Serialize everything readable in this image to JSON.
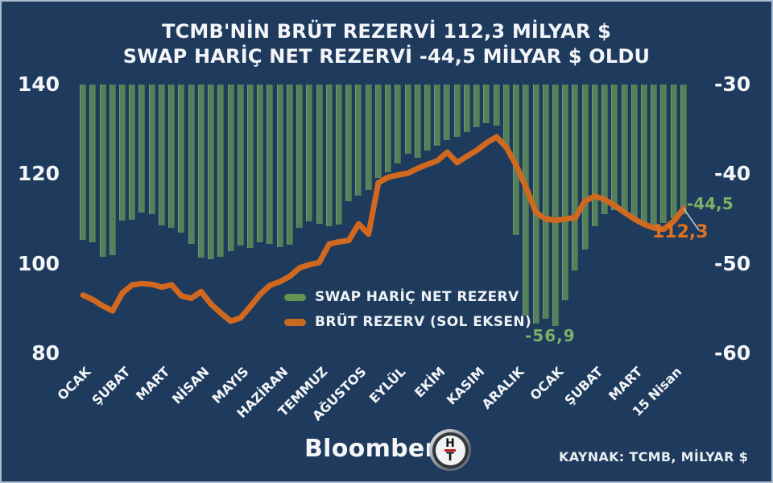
{
  "title": {
    "line1": "TCMB'NİN BRÜT REZERVİ 112,3 MİLYAR $",
    "line2": "SWAP HARİÇ NET REZERVİ -44,5 MİLYAR $ OLDU"
  },
  "legend": {
    "net": {
      "label": "SWAP HARİÇ NET REZERV",
      "color": "#649354"
    },
    "gross": {
      "label": "BRÜT REZERV (SOL EKSEN)",
      "color": "#ca6a20"
    }
  },
  "annotations": {
    "net_last": "-44,5",
    "gross_last": "112,3",
    "net_min": "-56,9"
  },
  "footer": {
    "brand": "Bloomberg",
    "logo_top_letter": "H",
    "logo_bottom_letter": "T",
    "source": "KAYNAK: TCMB, MİLYAR $"
  },
  "colors": {
    "background": "#1e3a5c",
    "bar_green": "#54805a",
    "line_orange": "#d0691f",
    "green_text": "#7fae66",
    "orange_text": "#de721f",
    "white_text": "#f3f5f8"
  },
  "chart_data": {
    "type": "bar+line",
    "title": "TCMB'NİN BRÜT REZERVİ 112,3 MİLYAR $ / SWAP HARİÇ NET REZERVİ -44,5 MİLYAR $ OLDU",
    "x_tick_labels": [
      "OCAK",
      "ŞUBAT",
      "MART",
      "NİSAN",
      "MAYIS",
      "HAZİRAN",
      "TEMMUZ",
      "AĞUSTOS",
      "EYLÜL",
      "EKİM",
      "KASIM",
      "ARALIK",
      "OCAK",
      "ŞUBAT",
      "MART",
      "15 Nisan"
    ],
    "x_ticks_per_month": 4,
    "left_axis": {
      "tick_labels": [
        "140",
        "120",
        "100",
        "80"
      ],
      "tick_values": [
        140,
        120,
        100,
        80
      ],
      "range": [
        80,
        140
      ]
    },
    "right_axis": {
      "tick_labels": [
        "-30",
        "-40",
        "-50",
        "-60"
      ],
      "tick_values": [
        -30,
        -40,
        -50,
        -60
      ],
      "range": [
        -60,
        -30
      ]
    },
    "grid": false,
    "legend_position": "center-left",
    "series": [
      {
        "name": "SWAP HARİÇ NET REZERV",
        "type": "bar",
        "axis": "right",
        "color": "#54805a",
        "values": [
          -47.3,
          -47.6,
          -49.2,
          -49.0,
          -45.2,
          -45.1,
          -44.3,
          -44.5,
          -45.7,
          -46.0,
          -46.5,
          -47.8,
          -49.3,
          -49.5,
          -49.2,
          -48.6,
          -48.0,
          -48.2,
          -47.6,
          -47.8,
          -48.1,
          -47.9,
          -46.0,
          -45.3,
          -45.5,
          -45.8,
          -45.6,
          -43.0,
          -42.4,
          -41.8,
          -40.4,
          -39.8,
          -38.8,
          -37.7,
          -38.2,
          -37.4,
          -36.8,
          -36.2,
          -35.8,
          -35.3,
          -34.8,
          -34.3,
          -34.6,
          -37.2,
          -46.8,
          -55.8,
          -56.7,
          -56.1,
          -56.9,
          -54.1,
          -50.7,
          -48.4,
          -45.8,
          -44.5,
          -44.0,
          -44.5,
          -45.2,
          -45.8,
          -46.2,
          -45.4,
          -44.9,
          -44.5
        ]
      },
      {
        "name": "BRÜT REZERV (SOL EKSEN)",
        "type": "line",
        "axis": "left",
        "color": "#d0691f",
        "values": [
          93.0,
          92.0,
          90.6,
          89.5,
          93.5,
          95.3,
          95.6,
          95.4,
          94.8,
          95.3,
          92.8,
          92.3,
          93.8,
          91.0,
          89.0,
          87.2,
          87.9,
          90.5,
          93.2,
          95.2,
          96.0,
          97.2,
          99.1,
          99.8,
          100.3,
          104.4,
          104.9,
          105.2,
          108.9,
          106.6,
          118.1,
          119.3,
          119.8,
          120.2,
          121.3,
          122.2,
          123.0,
          124.9,
          122.6,
          124.0,
          125.3,
          127.0,
          128.3,
          126.0,
          122.0,
          117.0,
          111.5,
          110.0,
          109.7,
          110.0,
          110.3,
          114.0,
          115.1,
          114.3,
          113.0,
          111.5,
          110.0,
          108.8,
          108.0,
          107.7,
          109.5,
          112.3
        ]
      }
    ]
  }
}
